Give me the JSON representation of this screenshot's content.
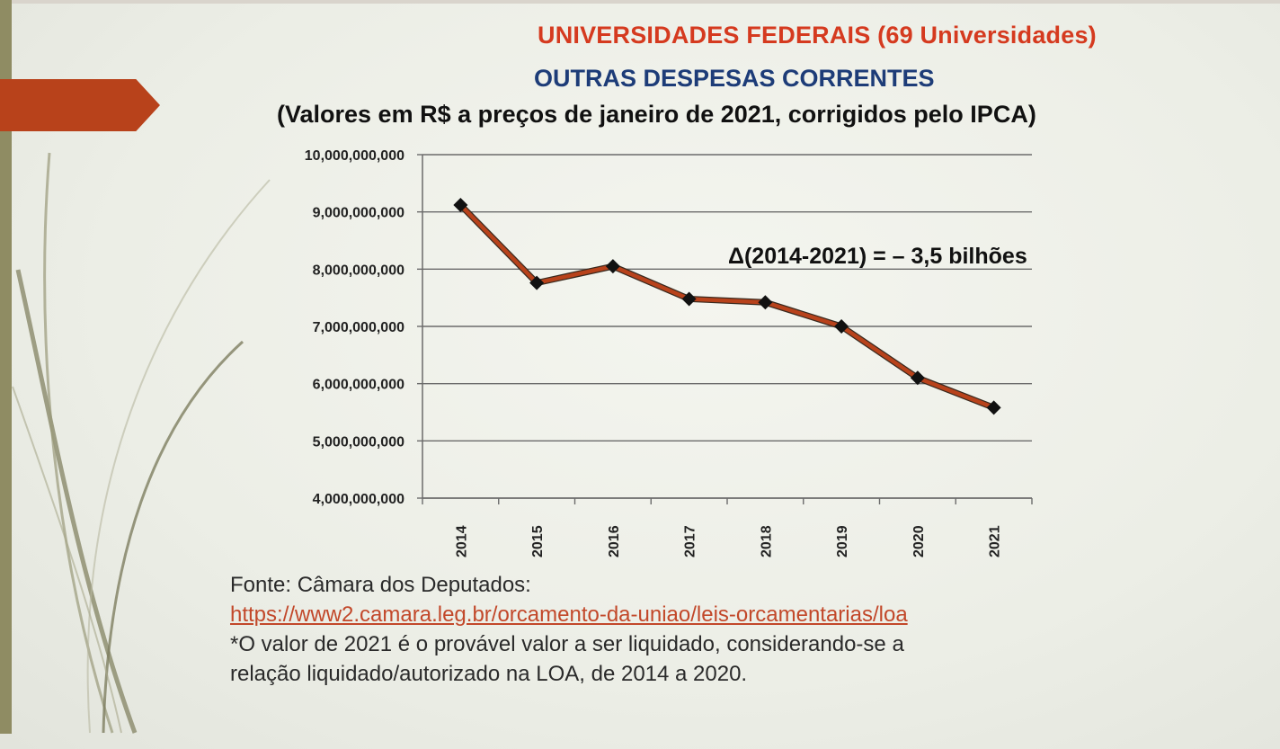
{
  "slide": {
    "title_line1": "UNIVERSIDADES FEDERAIS (69 Universidades)",
    "title_line2": "OUTRAS DESPESAS CORRENTES",
    "title_line3": "(Valores em R$ a preços de janeiro de 2021, corrigidos pelo IPCA)",
    "annotation": "Δ(2014-2021) = – 3,5 bilhões",
    "source_label": "Fonte: Câmara dos Deputados:",
    "source_link": "https://www2.camara.leg.br/orcamento-da-uniao/leis-orcamentarias/loa",
    "note_line1": "*O valor de 2021 é o provável valor a ser liquidado, considerando-se a",
    "note_line2": "relação liquidado/autorizado na LOA, de 2014 a 2020."
  },
  "colors": {
    "title_red": "#d53a1f",
    "title_blue": "#1d3c78",
    "line": "#b8421b",
    "marker": "#111111",
    "accent_tab": "#b8421b",
    "link": "#c2482a"
  },
  "chart_data": {
    "type": "line",
    "x": [
      "2014",
      "2015",
      "2016",
      "2017",
      "2018",
      "2019",
      "2020",
      "2021"
    ],
    "series": [
      {
        "values": [
          9120000000,
          7760000000,
          8050000000,
          7480000000,
          7420000000,
          7000000000,
          6100000000,
          5580000000
        ]
      }
    ],
    "ylim": [
      4000000000,
      10000000000
    ],
    "yticks": [
      4000000000,
      5000000000,
      6000000000,
      7000000000,
      8000000000,
      9000000000,
      10000000000
    ],
    "ytick_labels": [
      "4,000,000,000",
      "5,000,000,000",
      "6,000,000,000",
      "7,000,000,000",
      "8,000,000,000",
      "9,000,000,000",
      "10,000,000,000"
    ],
    "grid": true,
    "legend": "none",
    "marker": "diamond"
  }
}
